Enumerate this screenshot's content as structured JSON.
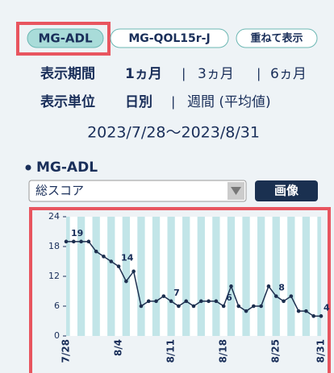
{
  "tabs": [
    "MG-ADL",
    "MG-QOL15r-J",
    "重ねて表示"
  ],
  "period": {
    "label": "表示期間",
    "options": [
      "1ヵ月",
      "3ヵ月",
      "6ヵ月"
    ]
  },
  "unit": {
    "label": "表示単位",
    "options": [
      "日別",
      "週間 (平均値)"
    ]
  },
  "date_range": "2023/7/28〜2023/8/31",
  "section_title": "MG-ADL",
  "select": "総スコア",
  "button": "画像",
  "chart_data": {
    "type": "line",
    "categories": [
      "7/28",
      null,
      null,
      null,
      null,
      null,
      null,
      "8/4",
      null,
      null,
      null,
      null,
      null,
      null,
      "8/11",
      null,
      null,
      null,
      null,
      null,
      null,
      "8/18",
      null,
      null,
      null,
      null,
      null,
      null,
      "8/25",
      null,
      null,
      null,
      null,
      null,
      "8/31"
    ],
    "values": [
      19,
      19,
      19,
      19,
      17,
      16,
      15,
      14,
      11,
      13,
      6,
      7,
      7,
      8,
      7,
      6,
      7,
      6,
      7,
      7,
      7,
      6,
      10,
      6,
      5,
      6,
      6,
      10,
      8,
      7,
      8,
      5,
      5,
      4,
      4
    ],
    "value_labels": [
      "19",
      null,
      null,
      null,
      null,
      null,
      null,
      "14",
      null,
      null,
      null,
      null,
      null,
      null,
      "7",
      null,
      null,
      null,
      null,
      null,
      null,
      "6",
      null,
      null,
      null,
      null,
      null,
      null,
      "8",
      null,
      null,
      null,
      null,
      null,
      "4"
    ],
    "color": "#1d2f4f",
    "ylim": [
      0,
      24
    ],
    "yticks": [
      0,
      6,
      12,
      18,
      24
    ]
  }
}
